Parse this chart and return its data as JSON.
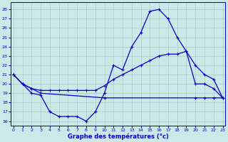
{
  "xlabel": "Graphe des températures (°c)",
  "bg_color": "#cce8e8",
  "grid_color": "#aacccc",
  "line_color": "#0000cc",
  "ylim": [
    15.5,
    28.8
  ],
  "xlim": [
    -0.3,
    23.3
  ],
  "yticks": [
    16,
    17,
    18,
    19,
    20,
    21,
    22,
    23,
    24,
    25,
    26,
    27,
    28
  ],
  "xticks": [
    0,
    1,
    2,
    3,
    4,
    5,
    6,
    7,
    8,
    9,
    10,
    11,
    12,
    13,
    14,
    15,
    16,
    17,
    18,
    19,
    20,
    21,
    22,
    23
  ],
  "line1_x": [
    0,
    1,
    2,
    3,
    4,
    5,
    6,
    7,
    8,
    9,
    10,
    11,
    12,
    13,
    14,
    15,
    16,
    17,
    18,
    19,
    20,
    21,
    22,
    23
  ],
  "line1_y": [
    21,
    20,
    19,
    18.8,
    17,
    16.5,
    16.5,
    16.5,
    16,
    17,
    19,
    22,
    21.5,
    24,
    25.5,
    27.8,
    28,
    27,
    25,
    23.5,
    20,
    20,
    19.5,
    18.5
  ],
  "line2_x": [
    0,
    1,
    2,
    3,
    4,
    5,
    6,
    7,
    8,
    9,
    10,
    11,
    12,
    13,
    14,
    15,
    16,
    17,
    18,
    19,
    20,
    21,
    22,
    23
  ],
  "line2_y": [
    21,
    20,
    19.5,
    19.3,
    19.3,
    19.3,
    19.3,
    19.3,
    19.3,
    19.3,
    19.8,
    20.5,
    21,
    21.5,
    22,
    22.5,
    23,
    23.2,
    23.2,
    23.5,
    22,
    21,
    20.5,
    18.5
  ],
  "line3_x": [
    0,
    1,
    2,
    3,
    10,
    20,
    21,
    22,
    23
  ],
  "line3_y": [
    21,
    20,
    19.5,
    19,
    18.5,
    18.5,
    18.5,
    18.5,
    18.5
  ]
}
